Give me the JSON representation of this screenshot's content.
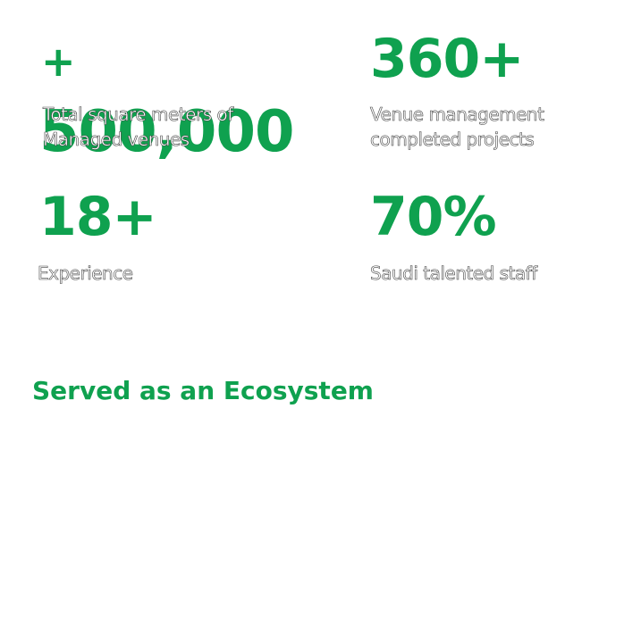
{
  "stats": [
    {
      "value": "+\n500,000",
      "label_line1": "Total square meters of",
      "label_line2": "Managed venues"
    },
    {
      "value": "360+",
      "label_line1": "Venue management",
      "label_line2": "completed projects"
    },
    {
      "value": "18+",
      "label_line1": "Experience",
      "label_line2": ""
    },
    {
      "value": "70%",
      "label_line1": "Saudi talented staff",
      "label_line2": ""
    }
  ],
  "section_title": "Served as an Ecosystem",
  "colors": {
    "accent": "#0fa14f",
    "label_fill": "#ffffff",
    "label_outline": "#444444"
  }
}
